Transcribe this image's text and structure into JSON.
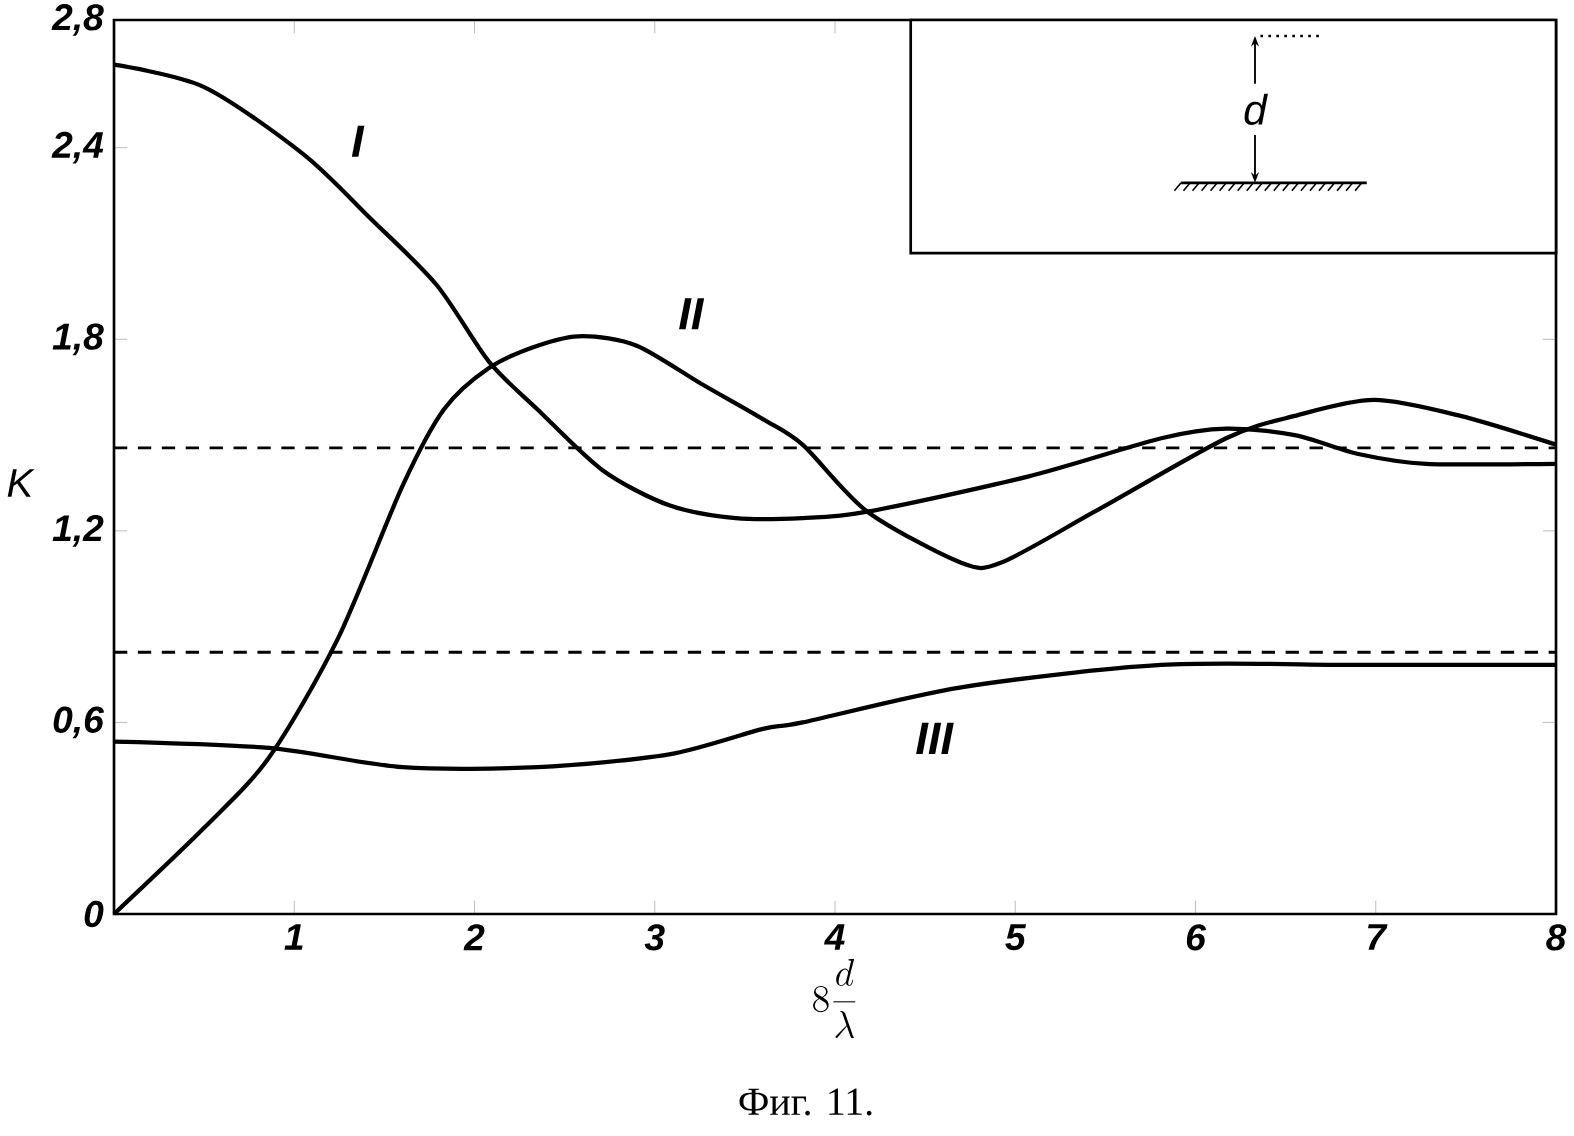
{
  "chart_data": {
    "type": "line",
    "xlabel": "8\\frac{d}{\\lambda}",
    "ylabel": "K",
    "xlim": [
      0,
      8
    ],
    "ylim": [
      0,
      2.8
    ],
    "xticks": [
      {
        "value": 0,
        "label": null
      },
      1,
      2,
      3,
      4,
      5,
      6,
      7,
      8
    ],
    "yticks": [
      0,
      {
        "value": 0.6,
        "label": "0,6"
      },
      {
        "value": 1.2,
        "label": "1,2"
      },
      {
        "value": 1.8,
        "label": "1,8"
      },
      {
        "value": 2.4,
        "label": "2,4"
      },
      {
        "value": 2.8,
        "label": "2,8"
      }
    ],
    "series": [
      {
        "name": "I",
        "color": "#000000",
        "x": [
          0,
          0.5,
          1.05,
          1.42,
          1.79,
          2.08,
          2.35,
          2.71,
          3.08,
          3.45,
          3.82,
          4.18,
          5.07,
          5.81,
          6.17,
          6.55,
          6.91,
          7.28,
          8
        ],
        "values": [
          2.66,
          2.59,
          2.38,
          2.18,
          1.97,
          1.73,
          1.58,
          1.39,
          1.28,
          1.24,
          1.24,
          1.26,
          1.37,
          1.49,
          1.52,
          1.5,
          1.44,
          1.41,
          1.41
        ]
      },
      {
        "name": "II",
        "color": "#000000",
        "x": [
          0,
          0.5,
          0.86,
          1.24,
          1.6,
          1.83,
          2.08,
          2.35,
          2.6,
          2.9,
          3.26,
          3.6,
          3.82,
          4.18,
          4.7,
          4.92,
          5.44,
          6.17,
          6.55,
          6.99,
          7.47,
          8
        ],
        "values": [
          0,
          0.27,
          0.49,
          0.86,
          1.34,
          1.58,
          1.71,
          1.78,
          1.81,
          1.78,
          1.66,
          1.55,
          1.47,
          1.26,
          1.1,
          1.1,
          1.26,
          1.49,
          1.56,
          1.61,
          1.56,
          1.47
        ]
      },
      {
        "name": "III",
        "color": "#000000",
        "x": [
          0,
          0.86,
          1.6,
          2.35,
          3.08,
          3.6,
          3.82,
          4.7,
          5.81,
          6.91,
          8
        ],
        "values": [
          0.54,
          0.52,
          0.46,
          0.46,
          0.5,
          0.58,
          0.6,
          0.71,
          0.78,
          0.78,
          0.78
        ]
      }
    ],
    "ref_lines": [
      {
        "axis": "y",
        "value": 1.46,
        "line_style": "dashed"
      },
      {
        "axis": "y",
        "value": 0.82,
        "line_style": "dashed"
      }
    ],
    "annotations": [
      "d",
      "Фиг. 11."
    ]
  }
}
